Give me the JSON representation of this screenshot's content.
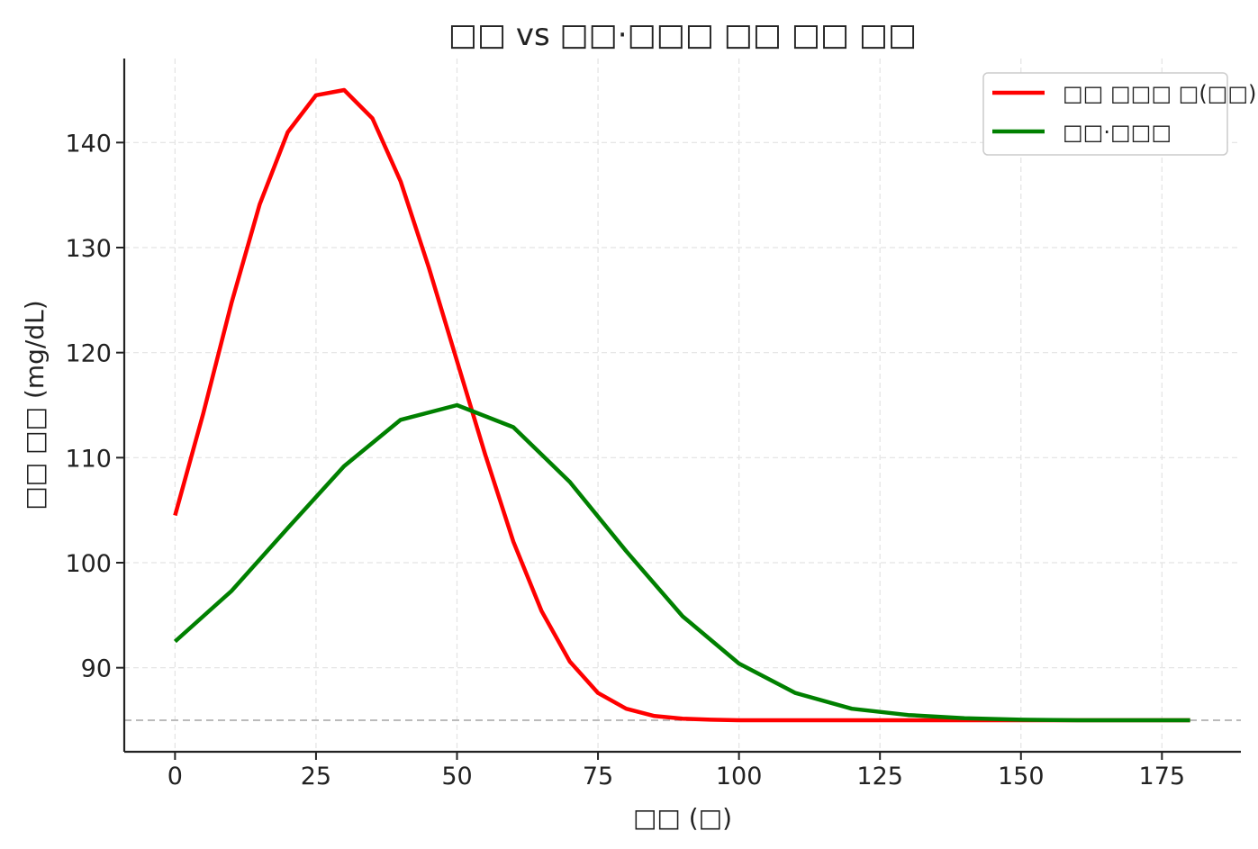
{
  "chart_data": {
    "type": "line",
    "title": "□□ vs □□·□□□ □□ □□ □□",
    "xlabel": "□□ (□)",
    "ylabel": "□□ □□ (mg/dL)",
    "xlim": [
      -9,
      189
    ],
    "ylim": [
      82,
      148
    ],
    "xticks": [
      0,
      25,
      50,
      75,
      100,
      125,
      150,
      175
    ],
    "yticks": [
      90,
      100,
      110,
      120,
      130,
      140
    ],
    "grid": true,
    "legend": "top-right",
    "baseline": {
      "y": 85,
      "color": "#bbbbbb"
    },
    "series": [
      {
        "name": "□□ □□□ □(□□)",
        "color": "#ff0000",
        "x": [
          0,
          5,
          10,
          15,
          20,
          25,
          30,
          35,
          40,
          45,
          50,
          55,
          60,
          65,
          70,
          75,
          80,
          85,
          90,
          95,
          100,
          110,
          120,
          130,
          140,
          150,
          160,
          170,
          180
        ],
        "y": [
          104.5,
          114.2,
          124.7,
          134.1,
          141.0,
          144.5,
          145.0,
          142.3,
          136.3,
          128.1,
          119.2,
          110.3,
          102.0,
          95.4,
          90.6,
          87.6,
          86.1,
          85.4,
          85.15,
          85.05,
          85.0,
          85.0,
          85.0,
          85.0,
          85.0,
          85.0,
          85.0,
          85.0,
          85.0
        ]
      },
      {
        "name": "□□·□□□",
        "color": "#008000",
        "x": [
          0,
          10,
          20,
          30,
          40,
          50,
          60,
          70,
          80,
          90,
          100,
          110,
          120,
          130,
          140,
          150,
          160,
          170,
          180
        ],
        "y": [
          92.5,
          97.3,
          103.3,
          109.2,
          113.6,
          115.0,
          112.9,
          107.7,
          101.1,
          94.9,
          90.4,
          87.6,
          86.1,
          85.5,
          85.2,
          85.05,
          85.0,
          85.0,
          85.0
        ]
      }
    ]
  }
}
